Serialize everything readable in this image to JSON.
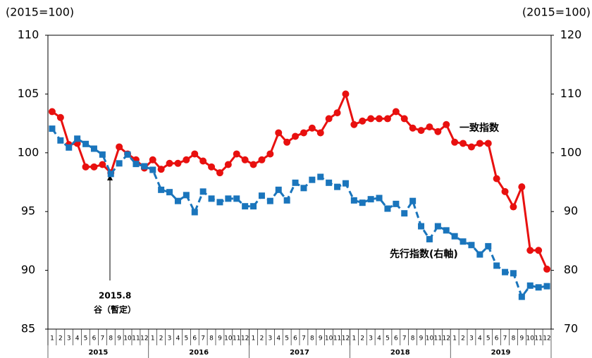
{
  "chart_data": {
    "type": "line",
    "left_unit": "(2015=100)",
    "right_unit": "(2015=100)",
    "categories": [
      "1",
      "2",
      "3",
      "4",
      "5",
      "6",
      "7",
      "8",
      "9",
      "10",
      "11",
      "12",
      "1",
      "2",
      "3",
      "4",
      "5",
      "6",
      "7",
      "8",
      "9",
      "10",
      "11",
      "12",
      "1",
      "2",
      "3",
      "4",
      "5",
      "6",
      "7",
      "8",
      "9",
      "10",
      "11",
      "12",
      "1",
      "2",
      "3",
      "4",
      "5",
      "6",
      "7",
      "8",
      "9",
      "10",
      "11",
      "12",
      "1",
      "2",
      "3",
      "4",
      "5",
      "6",
      "7",
      "8",
      "9",
      "10",
      "11",
      "12"
    ],
    "years": [
      "2015",
      "2016",
      "2017",
      "2018",
      "2019"
    ],
    "series": [
      {
        "name": "一致指数",
        "color": "#e8100f",
        "axis": "y",
        "marker": "circle",
        "values": [
          103.5,
          103.0,
          100.7,
          100.8,
          98.8,
          98.8,
          99.0,
          98.3,
          100.5,
          99.9,
          99.4,
          98.7,
          99.4,
          98.6,
          99.1,
          99.1,
          99.4,
          99.9,
          99.3,
          98.8,
          98.3,
          99.0,
          99.9,
          99.4,
          99.0,
          99.4,
          99.9,
          101.7,
          100.9,
          101.4,
          101.7,
          102.1,
          101.7,
          102.9,
          103.4,
          105.0,
          102.4,
          102.7,
          102.9,
          102.9,
          102.9,
          103.5,
          102.9,
          102.1,
          101.9,
          102.2,
          101.8,
          102.4,
          100.9,
          100.8,
          100.5,
          100.8,
          100.8,
          97.8,
          96.7,
          95.4,
          97.1,
          91.7,
          91.7,
          90.1
        ]
      },
      {
        "name": "先行指数(右軸)",
        "color": "#1a75bc",
        "axis": "y2",
        "marker": "square",
        "values": [
          104.1,
          102.1,
          100.9,
          102.4,
          101.5,
          100.7,
          99.7,
          96.4,
          98.2,
          99.7,
          98.1,
          97.7,
          97.1,
          93.7,
          93.3,
          91.8,
          92.8,
          89.9,
          93.4,
          92.2,
          91.6,
          92.2,
          92.2,
          90.9,
          90.9,
          92.7,
          91.8,
          93.7,
          91.9,
          94.9,
          94.0,
          95.4,
          95.9,
          94.9,
          94.2,
          94.8,
          91.9,
          91.5,
          92.1,
          92.3,
          90.5,
          91.3,
          89.7,
          91.8,
          87.5,
          85.3,
          87.5,
          86.8,
          85.8,
          84.9,
          84.3,
          82.7,
          84.1,
          80.8,
          79.7,
          79.5,
          75.5,
          77.4,
          77.1,
          77.3
        ]
      }
    ],
    "ylim": [
      85,
      110
    ],
    "yticks": [
      85,
      90,
      95,
      100,
      105,
      110
    ],
    "y2lim": [
      70,
      120
    ],
    "y2ticks": [
      70,
      80,
      90,
      100,
      110,
      120
    ],
    "annotations": [
      "2015.8",
      "谷（暫定）"
    ]
  }
}
